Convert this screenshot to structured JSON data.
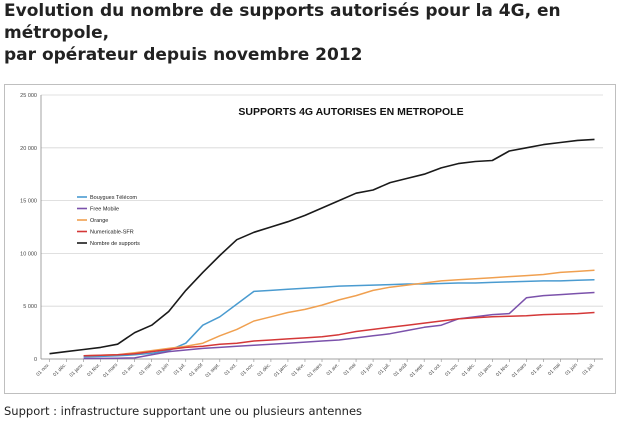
{
  "page": {
    "title_line1": "Evolution du nombre de supports autorisés pour la 4G, en métropole,",
    "title_line2": "par opérateur depuis novembre 2012",
    "caption": "Support : infrastructure supportant une ou plusieurs antennes"
  },
  "chart_data": {
    "type": "line",
    "title": "SUPPORTS 4G AUTORISES EN METROPOLE",
    "xlabel": "",
    "ylabel": "",
    "ylim": [
      0,
      25000
    ],
    "yticks": [
      "0",
      "5 000",
      "10 000",
      "15 000",
      "20 000",
      "25 000"
    ],
    "grid": true,
    "legend_position": "left",
    "categories": [
      "01 nov.",
      "01 déc.",
      "01 janv.",
      "01 févr.",
      "01 mars",
      "01 avr.",
      "01 mai",
      "01 juin",
      "01 juil.",
      "01 août",
      "01 sept.",
      "01 oct.",
      "01 nov.",
      "01 déc.",
      "01 janv.",
      "01 févr.",
      "01 mars",
      "01 avr.",
      "01 mai",
      "01 juin",
      "01 juil.",
      "01 août",
      "01 sept.",
      "01 oct.",
      "01 nov.",
      "01 déc.",
      "01 janv.",
      "01 févr.",
      "01 mars",
      "01 avr.",
      "01 mai",
      "01 juin",
      "01 juil."
    ],
    "series": [
      {
        "name": "Bouygues Télécom",
        "color": "#4a9bd0",
        "values": [
          null,
          null,
          200,
          250,
          300,
          400,
          550,
          800,
          1500,
          3200,
          4000,
          5200,
          6400,
          6500,
          6600,
          6700,
          6800,
          6900,
          6950,
          7000,
          7050,
          7100,
          7100,
          7150,
          7200,
          7200,
          7250,
          7300,
          7350,
          7400,
          7400,
          7450,
          7500
        ]
      },
      {
        "name": "Free Mobile",
        "color": "#7b52ab",
        "values": [
          null,
          null,
          50,
          60,
          80,
          100,
          400,
          700,
          850,
          1000,
          1100,
          1200,
          1300,
          1400,
          1500,
          1600,
          1700,
          1800,
          2000,
          2200,
          2400,
          2700,
          3000,
          3200,
          3800,
          4000,
          4200,
          4300,
          5800,
          6000,
          6100,
          6200,
          6300
        ]
      },
      {
        "name": "Orange",
        "color": "#f0a050",
        "values": [
          null,
          null,
          300,
          350,
          400,
          600,
          800,
          1000,
          1200,
          1500,
          2200,
          2800,
          3600,
          4000,
          4400,
          4700,
          5100,
          5600,
          6000,
          6500,
          6800,
          7000,
          7200,
          7400,
          7500,
          7600,
          7700,
          7800,
          7900,
          8000,
          8200,
          8300,
          8400
        ]
      },
      {
        "name": "Numericable-SFR",
        "color": "#d43838",
        "values": [
          null,
          null,
          300,
          350,
          400,
          500,
          700,
          900,
          1100,
          1200,
          1400,
          1500,
          1700,
          1800,
          1900,
          2000,
          2100,
          2300,
          2600,
          2800,
          3000,
          3200,
          3400,
          3600,
          3800,
          3900,
          4000,
          4050,
          4100,
          4200,
          4250,
          4300,
          4400
        ]
      },
      {
        "name": "Nombre de supports",
        "color": "#1a1a1a",
        "values": [
          500,
          700,
          900,
          1100,
          1400,
          2500,
          3200,
          4500,
          6500,
          8200,
          9800,
          11300,
          12000,
          12500,
          13000,
          13600,
          14300,
          15000,
          15700,
          16000,
          16700,
          17100,
          17500,
          18100,
          18500,
          18700,
          18800,
          19700,
          20000,
          20300,
          20500,
          20700,
          20800
        ]
      }
    ]
  }
}
